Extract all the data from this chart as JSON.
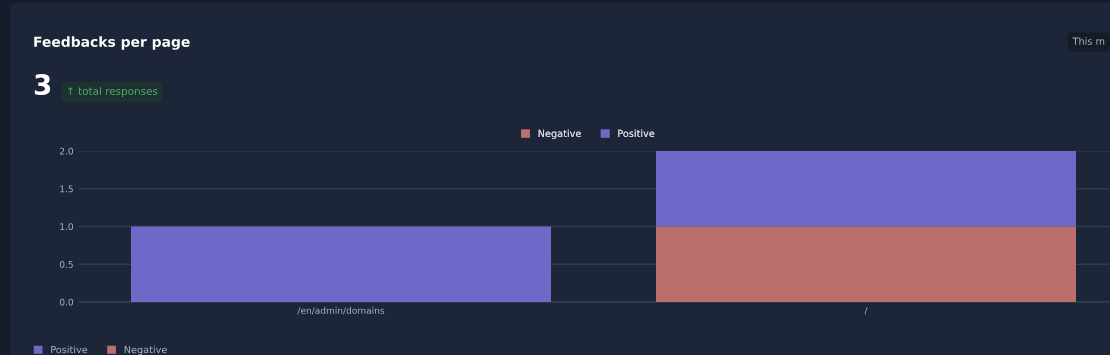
{
  "chart_data": {
    "type": "bar",
    "title": "Feedbacks per page",
    "annotations": [
      "3",
      "↑ total responses",
      "This m"
    ],
    "categories": [
      "/en/admin/domains",
      "/"
    ],
    "stacked": true,
    "series": [
      {
        "name": "Negative",
        "color": "#bb6f6d",
        "values": [
          0,
          1
        ]
      },
      {
        "name": "Positive",
        "color": "#7068c8",
        "values": [
          1,
          1
        ]
      }
    ],
    "ylim": [
      0,
      2
    ],
    "yticks": [
      {
        "value": 0,
        "label": "0.0"
      },
      {
        "value": 0.5,
        "label": "0.5"
      },
      {
        "value": 1,
        "label": "1.0"
      },
      {
        "value": 1.5,
        "label": "1.5"
      },
      {
        "value": 2,
        "label": "2.0"
      }
    ],
    "grid": "y",
    "legend": "top"
  }
}
